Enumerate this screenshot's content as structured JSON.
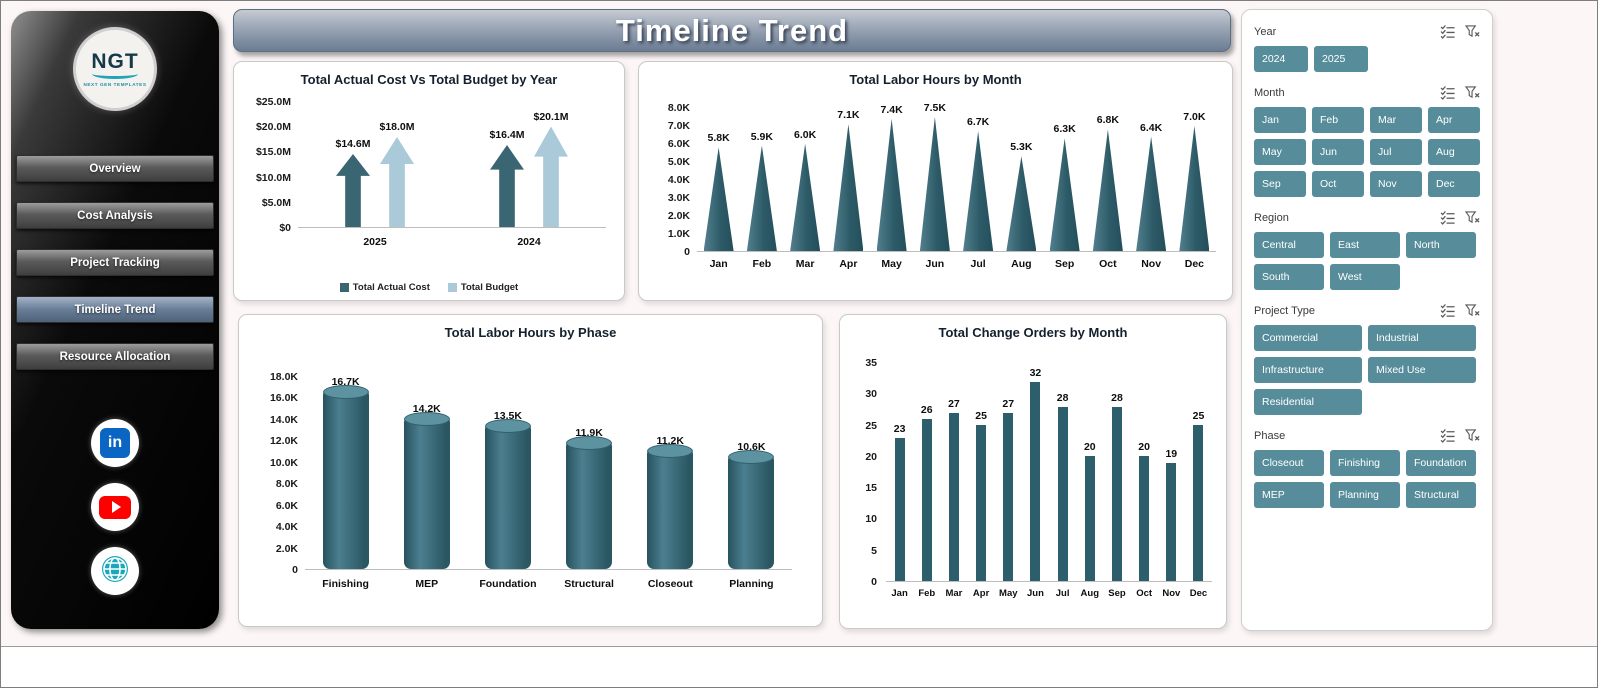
{
  "page": {
    "title": "Timeline Trend"
  },
  "colors": {
    "dark_teal": "#38616e",
    "light_blue": "#a9c9da",
    "slicer_teal": "#578d9b",
    "cylinder_teal": "#3c6d7c",
    "column_teal": "#2d5e6c"
  },
  "sidebar": {
    "logo_text": "NGT",
    "logo_subtext": "NEXT GEN TEMPLATES",
    "items": [
      {
        "label": "Overview",
        "active": false
      },
      {
        "label": "Cost Analysis",
        "active": false
      },
      {
        "label": "Project Tracking",
        "active": false
      },
      {
        "label": "Timeline Trend",
        "active": true
      },
      {
        "label": "Resource Allocation",
        "active": false
      }
    ],
    "social": [
      "linkedin",
      "youtube",
      "web"
    ]
  },
  "slicers": [
    {
      "slug": "year",
      "title": "Year",
      "options": [
        "2024",
        "2025"
      ]
    },
    {
      "slug": "month",
      "title": "Month",
      "options": [
        "Jan",
        "Feb",
        "Mar",
        "Apr",
        "May",
        "Jun",
        "Jul",
        "Aug",
        "Sep",
        "Oct",
        "Nov",
        "Dec"
      ]
    },
    {
      "slug": "region",
      "title": "Region",
      "options": [
        "Central",
        "East",
        "North",
        "South",
        "West"
      ]
    },
    {
      "slug": "project-type",
      "title": "Project Type",
      "options": [
        "Commercial",
        "Industrial",
        "Infrastructure",
        "Mixed Use",
        "Residential"
      ]
    },
    {
      "slug": "phase",
      "title": "Phase",
      "options": [
        "Closeout",
        "Finishing",
        "Foundation",
        "MEP",
        "Planning",
        "Structural"
      ]
    }
  ],
  "chart_data": [
    {
      "id": "cost-vs-budget",
      "type": "bar",
      "variant": "arrow",
      "title": "Total Actual Cost Vs Total Budget by Year",
      "categories": [
        "2025",
        "2024"
      ],
      "series": [
        {
          "name": "Total Actual Cost",
          "values": [
            14.6,
            16.4
          ],
          "labels": [
            "$14.6M",
            "$16.4M"
          ],
          "color": "#3a6673"
        },
        {
          "name": "Total Budget",
          "values": [
            18.0,
            20.1
          ],
          "labels": [
            "$18.0M",
            "$20.1M"
          ],
          "color": "#aac9d9"
        }
      ],
      "ylim": [
        0,
        25
      ],
      "yticks": [
        "$0",
        "$5.0M",
        "$10.0M",
        "$15.0M",
        "$20.0M",
        "$25.0M"
      ],
      "legend_position": "bottom"
    },
    {
      "id": "labor-hours-by-month",
      "type": "bar",
      "variant": "cone",
      "title": "Total Labor Hours by Month",
      "categories": [
        "Jan",
        "Feb",
        "Mar",
        "Apr",
        "May",
        "Jun",
        "Jul",
        "Aug",
        "Sep",
        "Oct",
        "Nov",
        "Dec"
      ],
      "values": [
        5.8,
        5.9,
        6.0,
        7.1,
        7.4,
        7.5,
        6.7,
        5.3,
        6.3,
        6.8,
        6.4,
        7.0
      ],
      "labels": [
        "5.8K",
        "5.9K",
        "6.0K",
        "7.1K",
        "7.4K",
        "7.5K",
        "6.7K",
        "5.3K",
        "6.3K",
        "6.8K",
        "6.4K",
        "7.0K"
      ],
      "ylim": [
        0,
        8
      ],
      "yticks": [
        "0",
        "1.0K",
        "2.0K",
        "3.0K",
        "4.0K",
        "5.0K",
        "6.0K",
        "7.0K",
        "8.0K"
      ]
    },
    {
      "id": "labor-hours-by-phase",
      "type": "bar",
      "variant": "cylinder",
      "title": "Total Labor Hours by Phase",
      "categories": [
        "Finishing",
        "MEP",
        "Foundation",
        "Structural",
        "Closeout",
        "Planning"
      ],
      "values": [
        16.7,
        14.2,
        13.5,
        11.9,
        11.2,
        10.6
      ],
      "labels": [
        "16.7K",
        "14.2K",
        "13.5K",
        "11.9K",
        "11.2K",
        "10.6K"
      ],
      "ylim": [
        0,
        18
      ],
      "yticks": [
        "0",
        "2.0K",
        "4.0K",
        "6.0K",
        "8.0K",
        "10.0K",
        "12.0K",
        "14.0K",
        "16.0K",
        "18.0K"
      ]
    },
    {
      "id": "change-orders-by-month",
      "type": "bar",
      "variant": "column",
      "title": "Total Change Orders by Month",
      "categories": [
        "Jan",
        "Feb",
        "Mar",
        "Apr",
        "May",
        "Jun",
        "Jul",
        "Aug",
        "Sep",
        "Oct",
        "Nov",
        "Dec"
      ],
      "values": [
        23,
        26,
        27,
        25,
        27,
        32,
        28,
        20,
        28,
        20,
        19,
        25
      ],
      "labels": [
        "23",
        "26",
        "27",
        "25",
        "27",
        "32",
        "28",
        "20",
        "28",
        "20",
        "19",
        "25"
      ],
      "ylim": [
        0,
        35
      ],
      "yticks": [
        "0",
        "5",
        "10",
        "15",
        "20",
        "25",
        "30",
        "35"
      ]
    }
  ]
}
